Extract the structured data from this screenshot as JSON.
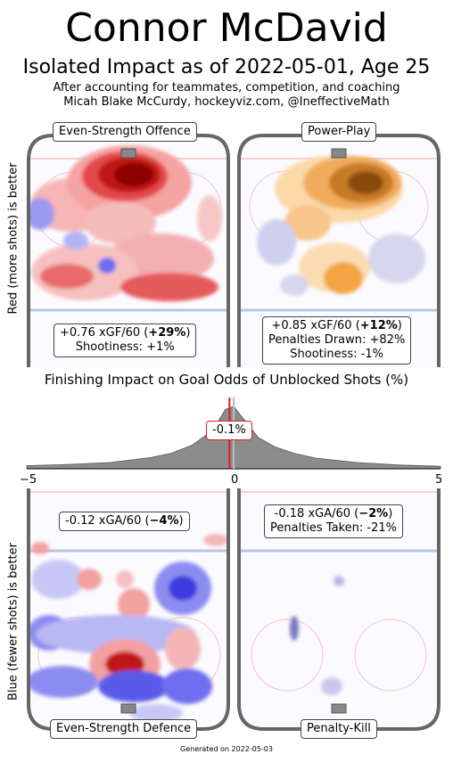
{
  "header": {
    "title": "Connor McDavid",
    "subtitle": "Isolated Impact as of 2022-05-01, Age 25",
    "note_line1": "After accounting for teammates, competition, and coaching",
    "note_line2": "Micah Blake McCurdy, hockeyviz.com, @IneffectiveMath"
  },
  "axis_labels": {
    "top_y": "Red (more shots) is better",
    "bottom_y": "Blue (fewer shots) is better"
  },
  "panels": {
    "es_offence": {
      "label": "Even-Strength Offence",
      "stat_value": "+0.76 xGF/60 (",
      "stat_pct": "+29%",
      "stat_close": ")",
      "line2": "Shootiness: +1%"
    },
    "power_play": {
      "label": "Power-Play",
      "stat_value": "+0.85 xGF/60 (",
      "stat_pct": "+12%",
      "stat_close": ")",
      "line2": "Penalties Drawn: +82%",
      "line3": "Shootiness: -1%"
    },
    "es_defence": {
      "label": "Even-Strength Defence",
      "stat_value": "-0.12 xGA/60 (",
      "stat_pct": "−4%",
      "stat_close": ")"
    },
    "penalty_kill": {
      "label": "Penalty-Kill",
      "stat_value": "-0.18 xGA/60 (",
      "stat_pct": "−2%",
      "stat_close": ")",
      "line2": "Penalties Taken: -21%"
    }
  },
  "chart_data": {
    "type": "area",
    "title": "Finishing Impact on Goal Odds of Unblocked Shots (%)",
    "xlim": [
      -5,
      5
    ],
    "x_ticks": [
      "−5",
      "0",
      "5"
    ],
    "marker_value": -0.1,
    "marker_label": "-0.1%",
    "distribution": {
      "x": [
        -5,
        -4,
        -3,
        -2,
        -1.5,
        -1,
        -0.5,
        -0.2,
        0,
        0.3,
        0.6,
        1,
        1.5,
        2,
        3,
        4,
        5
      ],
      "density": [
        0.05,
        0.07,
        0.1,
        0.18,
        0.25,
        0.38,
        0.62,
        0.95,
        1.0,
        0.75,
        0.5,
        0.35,
        0.24,
        0.17,
        0.1,
        0.06,
        0.04
      ]
    },
    "colors": {
      "fill": "#8c8c8c",
      "marker": "#e31a1c",
      "zero_line": "#bbbbbb"
    }
  },
  "colors": {
    "rink_board": "#666666",
    "red_line": "#f4c2c2",
    "blue_line": "#b7c6e6",
    "offence_red": "#d7191c",
    "pp_orange": "#f4a442",
    "defence_blue": "#3a3ae0",
    "pk_purple": "#8e8ec8"
  },
  "footer": "Generated on 2022-05-03"
}
